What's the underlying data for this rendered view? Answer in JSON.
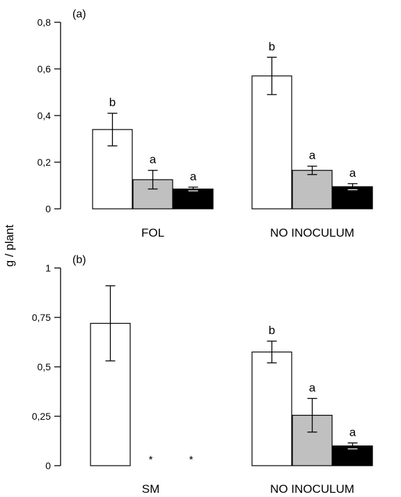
{
  "ylabel": "g / plant",
  "colors": {
    "white": "#ffffff",
    "gray": "#c0c0c0",
    "black": "#000000",
    "stroke": "#000000"
  },
  "chart_data": [
    {
      "type": "bar",
      "panel_label": "(a)",
      "categories": [
        "FOL",
        "NO INOCULUM"
      ],
      "ylabel": "g / plant",
      "ylim": [
        0,
        0.8
      ],
      "yticks": [
        0,
        0.2,
        0.4,
        0.6,
        0.8
      ],
      "ytick_labels": [
        "0",
        "0,2",
        "0,4",
        "0,6",
        "0,8"
      ],
      "grid": false,
      "series": [
        {
          "fill": "#ffffff",
          "values": [
            0.34,
            0.57
          ],
          "errors": [
            0.07,
            0.08
          ],
          "letters": [
            "b",
            "b"
          ]
        },
        {
          "fill": "#c0c0c0",
          "values": [
            0.125,
            0.165
          ],
          "errors": [
            0.04,
            0.018
          ],
          "letters": [
            "a",
            "a"
          ]
        },
        {
          "fill": "#000000",
          "values": [
            0.085,
            0.095
          ],
          "errors": [
            0.008,
            0.013
          ],
          "letters": [
            "a",
            "a"
          ]
        }
      ]
    },
    {
      "type": "bar",
      "panel_label": "(b)",
      "categories": [
        "SM",
        "NO INOCULUM"
      ],
      "ylabel": "g / plant",
      "ylim": [
        0,
        1
      ],
      "yticks": [
        0,
        0.25,
        0.5,
        0.75,
        1
      ],
      "ytick_labels": [
        "0",
        "0,25",
        "0,5",
        "0,75",
        "1"
      ],
      "grid": false,
      "series": [
        {
          "fill": "#ffffff",
          "values": [
            0.72,
            0.575
          ],
          "errors": [
            0.19,
            0.055
          ],
          "letters": [
            "",
            "b"
          ],
          "missing_markers": [
            "",
            ""
          ]
        },
        {
          "fill": "#c0c0c0",
          "values": [
            null,
            0.255
          ],
          "errors": [
            null,
            0.085
          ],
          "letters": [
            "",
            "a"
          ],
          "missing_markers": [
            "*",
            ""
          ]
        },
        {
          "fill": "#000000",
          "values": [
            null,
            0.1
          ],
          "errors": [
            null,
            0.015
          ],
          "letters": [
            "",
            "a"
          ],
          "missing_markers": [
            "*",
            ""
          ]
        }
      ]
    }
  ]
}
